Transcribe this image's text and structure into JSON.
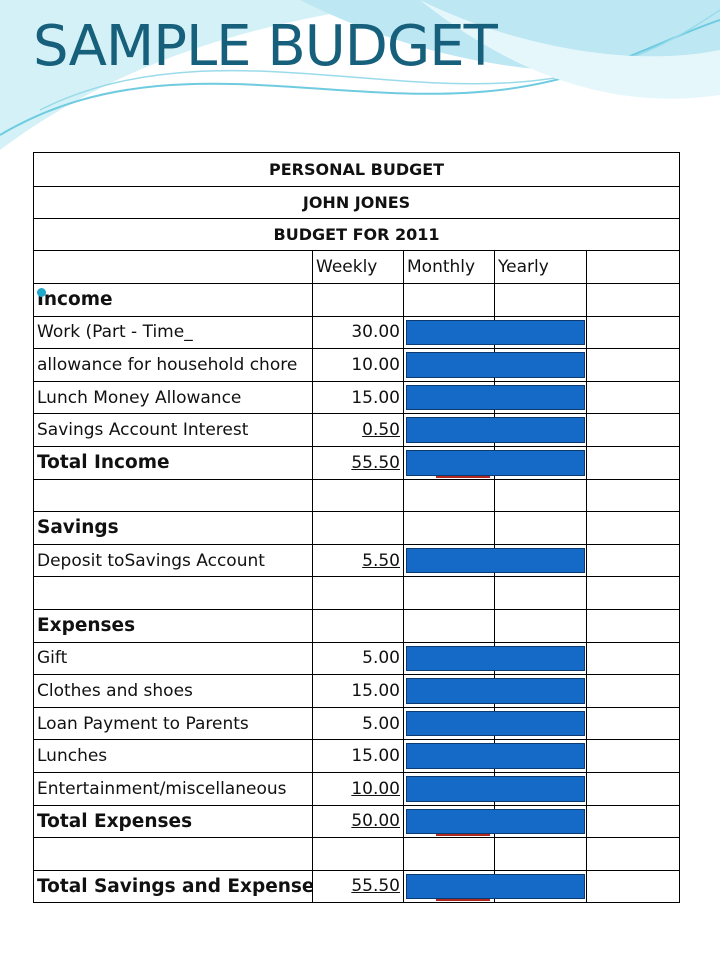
{
  "title": "SAMPLE BUDGET",
  "table": {
    "header": [
      "PERSONAL BUDGET",
      "JOHN JONES",
      "BUDGET FOR 2011"
    ],
    "columns": [
      "Weekly",
      "Monthly",
      "Yearly"
    ],
    "rows": [
      {
        "label": "Income",
        "bold": true
      },
      {
        "label": "Work (Part - Time_",
        "weekly": "30.00"
      },
      {
        "label": "allowance for household chore",
        "weekly": "10.00"
      },
      {
        "label": "Lunch Money Allowance",
        "weekly": "15.00"
      },
      {
        "label": "Savings Account Interest",
        "weekly": "0.50",
        "underline": true
      },
      {
        "label": "Total Income",
        "weekly": "55.50",
        "bold": true,
        "underline": true
      },
      null,
      {
        "label": "Savings",
        "bold": true
      },
      {
        "label": "Deposit toSavings Account",
        "weekly": "5.50",
        "underline": true
      },
      null,
      {
        "label": "Expenses",
        "bold": true
      },
      {
        "label": "Gift",
        "weekly": "5.00"
      },
      {
        "label": "Clothes and shoes",
        "weekly": "15.00"
      },
      {
        "label": "Loan Payment to Parents",
        "weekly": "5.00"
      },
      {
        "label": "Lunches",
        "weekly": "15.00"
      },
      {
        "label": "Entertainment/miscellaneous",
        "weekly": "10.00",
        "underline": true
      },
      {
        "label": "Total Expenses",
        "weekly": "50.00",
        "bold": true,
        "underline": true
      },
      null,
      {
        "label": "Total Savings and Expenses.",
        "weekly": "55.50",
        "bold": true,
        "underline": true
      }
    ]
  }
}
